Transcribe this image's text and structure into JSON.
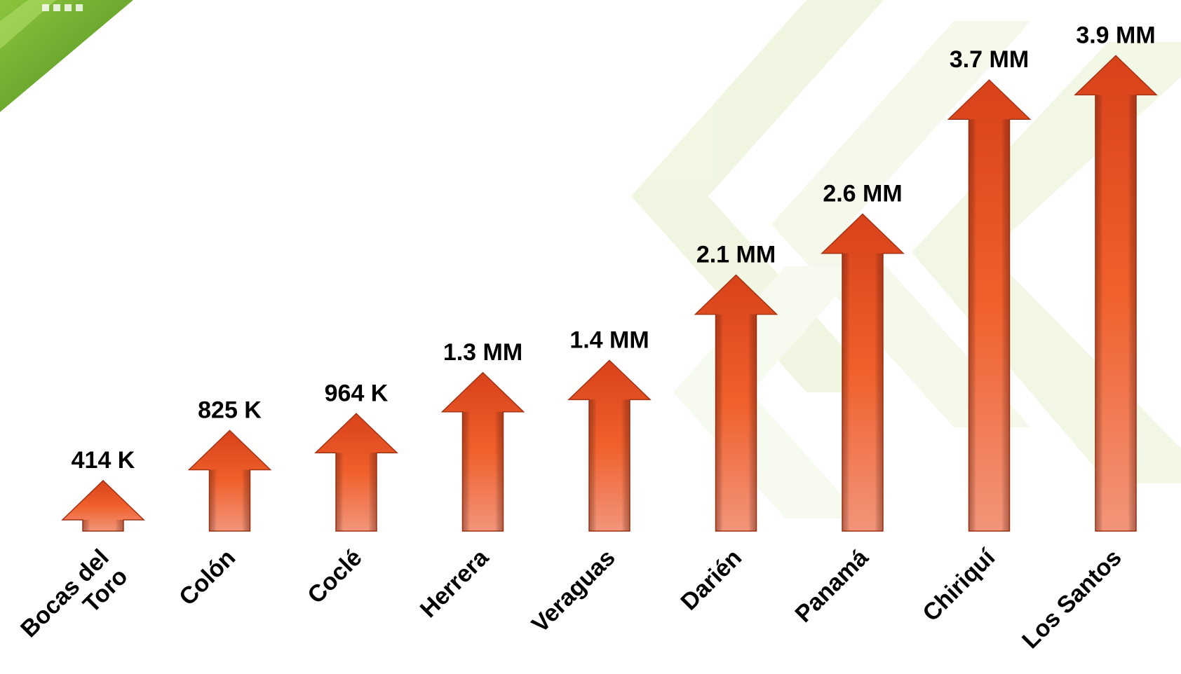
{
  "chart_data": {
    "type": "bar",
    "categories": [
      "Bocas del Toro",
      "Colón",
      "Coclé",
      "Herrera",
      "Veraguas",
      "Darién",
      "Panamá",
      "Chiriquí",
      "Los Santos"
    ],
    "category_lines": [
      [
        "Bocas del",
        "Toro"
      ],
      [
        "Colón"
      ],
      [
        "Coclé"
      ],
      [
        "Herrera"
      ],
      [
        "Veraguas"
      ],
      [
        "Darién"
      ],
      [
        "Panamá"
      ],
      [
        "Chiriquí"
      ],
      [
        "Los Santos"
      ]
    ],
    "values": [
      414000,
      825000,
      964000,
      1300000,
      1400000,
      2100000,
      2600000,
      3700000,
      3900000
    ],
    "value_labels": [
      "414 K",
      "825 K",
      "964 K",
      "1.3 MM",
      "1.4 MM",
      "2.1 MM",
      "2.6 MM",
      "3.7 MM",
      "3.9 MM"
    ],
    "title": "",
    "xlabel": "",
    "ylabel": "",
    "ylim": [
      0,
      4000000
    ],
    "grid": false,
    "legend": "none",
    "mark": "up-arrow"
  },
  "colors": {
    "arrow_top": "#d8421b",
    "arrow_mid": "#f0602c",
    "arrow_bottom": "#f2957a",
    "arrow_stroke": "#a33313",
    "background_accent": "#eef3dc",
    "logo_green": "#6fae2f"
  }
}
